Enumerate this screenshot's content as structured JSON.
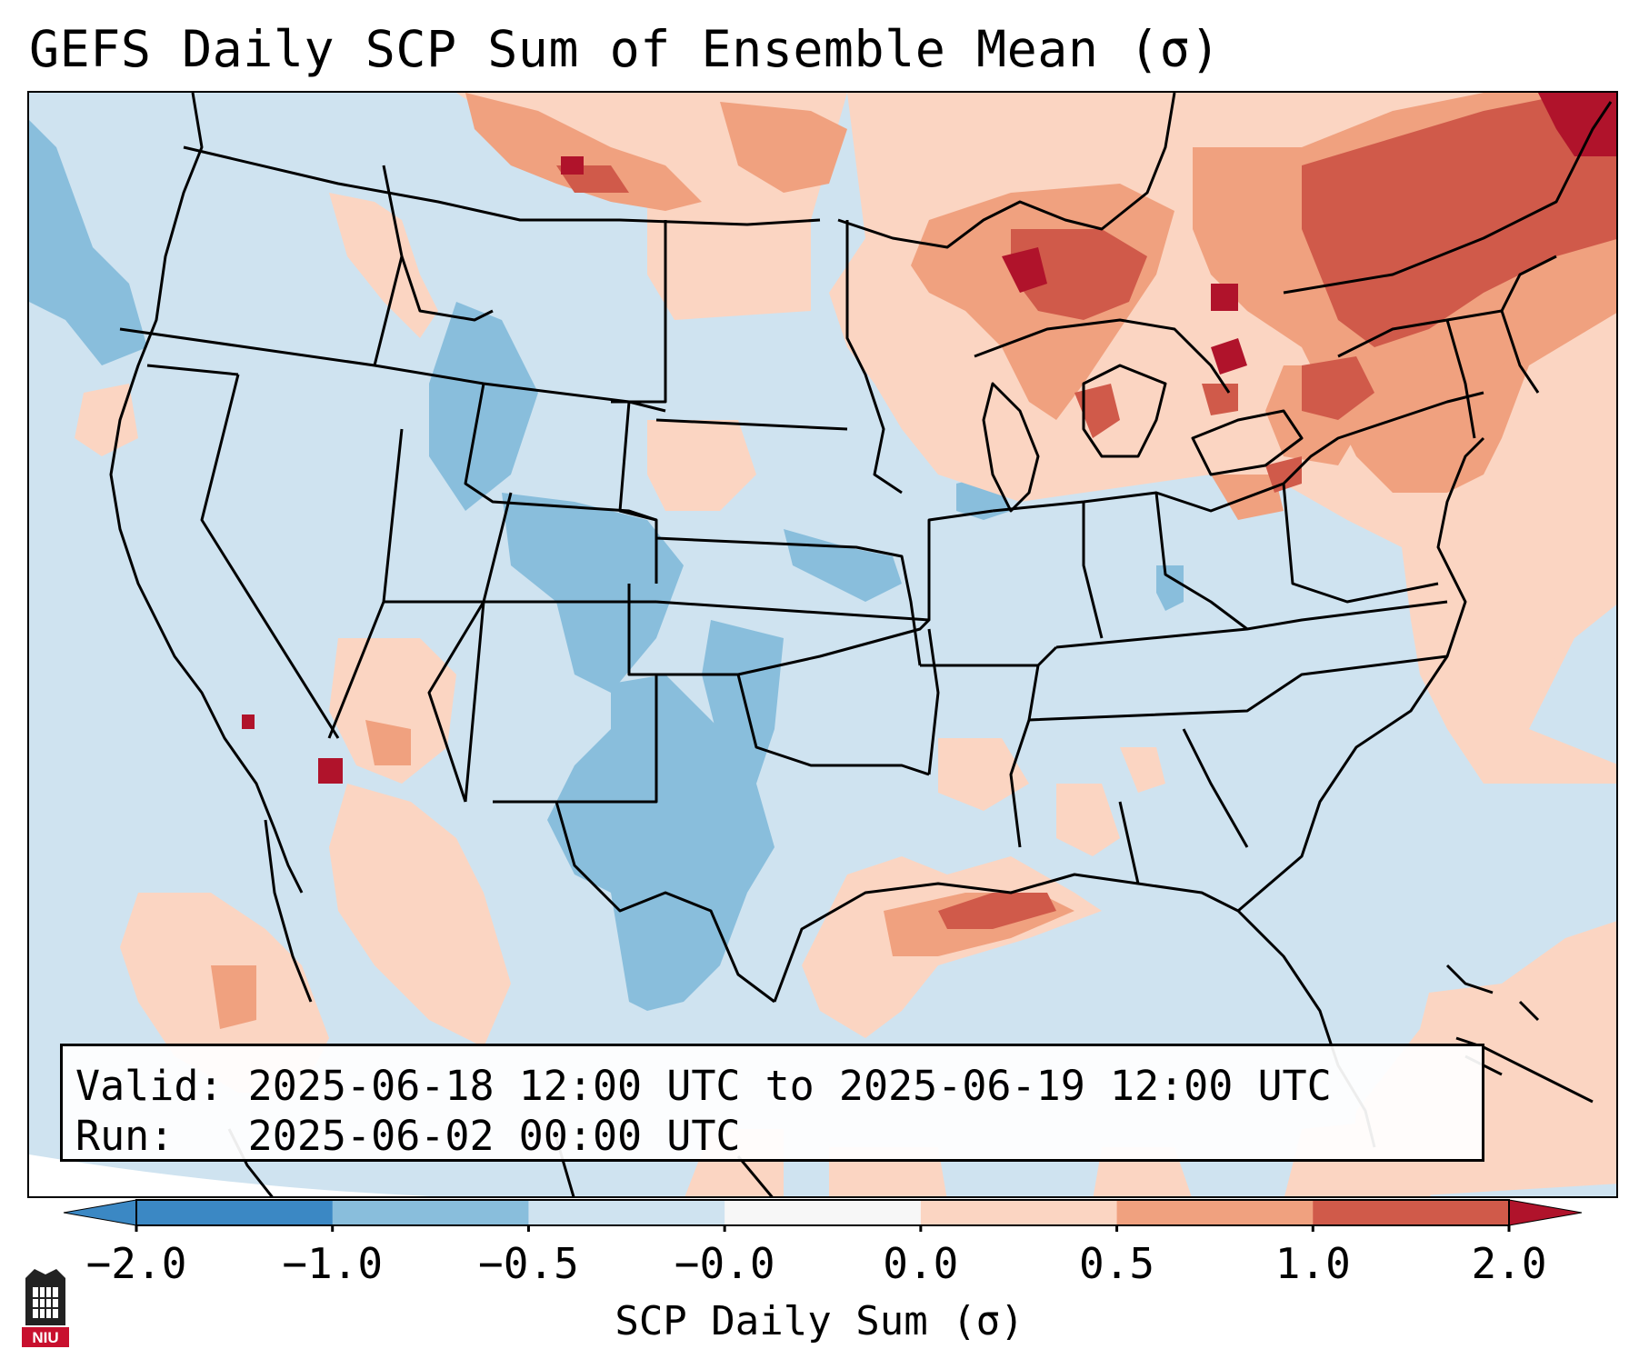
{
  "title": "GEFS Daily SCP Sum of Ensemble Mean (σ)",
  "info": {
    "valid_label": "Valid:",
    "valid_value": "2025-06-18 12:00 UTC to 2025-06-19 12:00 UTC",
    "run_label": "Run:",
    "run_value": "2025-06-02 00:00 UTC"
  },
  "colorbar": {
    "label": "SCP Daily Sum (σ)",
    "ticks": [
      "−2.0",
      "−1.0",
      "−0.5",
      "−0.0",
      "0.0",
      "0.5",
      "1.0",
      "2.0"
    ],
    "colors": [
      "#3b88c4",
      "#89bedc",
      "#cfe3f0",
      "#f7f7f7",
      "#fbd5c2",
      "#f0a17f",
      "#d05a4a",
      "#b0132b"
    ]
  },
  "logo": {
    "text": "NIU"
  },
  "chart_data": {
    "type": "heatmap",
    "title": "GEFS Daily SCP Sum of Ensemble Mean (σ)",
    "variable": "SCP Daily Sum (σ)",
    "levels": [
      -2.0,
      -1.0,
      -0.5,
      -0.0,
      0.0,
      0.5,
      1.0,
      2.0
    ],
    "region": "Continental United States",
    "notes": "Strongest positive anomalies over the Great Lakes, New England and southeastern Canada; positive band along the northern Gulf coast; negative anomalies over Texas, Oklahoma and the central Rockies."
  }
}
